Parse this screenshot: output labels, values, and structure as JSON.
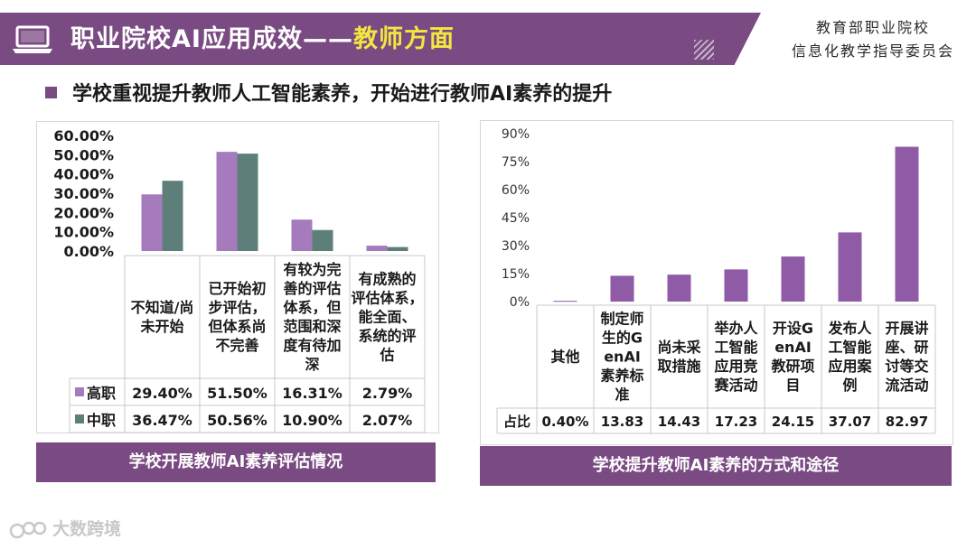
{
  "header": {
    "title_main": "职业院校AI应用成效——",
    "title_highlight": "教师方面",
    "org_line1": "教育部职业院校",
    "org_line2": "信息化教学指导委员会"
  },
  "subtitle": "学校重视提升教师人工智能素养，开始进行教师AI素养的提升",
  "colors": {
    "brand": "#7a4a83",
    "highlight": "#f2e640",
    "series_gaozhi": "#a57bbd",
    "series_zhongzhi": "#5e7f79",
    "bar_right": "#8f5aa6"
  },
  "chart_data": [
    {
      "type": "bar",
      "title": "学校开展教师AI素养评估情况",
      "categories": [
        [
          "不知道/尚",
          "未开始"
        ],
        [
          "已开始初",
          "步评估，",
          "但体系尚",
          "不完善"
        ],
        [
          "有较为完",
          "善的评估",
          "体系，但",
          "范围和深",
          "度有待加",
          "深"
        ],
        [
          "有成熟的",
          "评估体系，",
          "能全面、",
          "系统的评",
          "估"
        ]
      ],
      "series": [
        {
          "name": "高职",
          "values": [
            29.4,
            51.5,
            16.31,
            2.79
          ],
          "labels": [
            "29.40%",
            "51.50%",
            "16.31%",
            "2.79%"
          ]
        },
        {
          "name": "中职",
          "values": [
            36.47,
            50.56,
            10.9,
            2.07
          ],
          "labels": [
            "36.47%",
            "50.56%",
            "10.90%",
            "2.07%"
          ]
        }
      ],
      "yticks": [
        "60.00%",
        "50.00%",
        "40.00%",
        "30.00%",
        "20.00%",
        "10.00%",
        "0.00%"
      ],
      "ylim": [
        0,
        60
      ],
      "legend": "data-table"
    },
    {
      "type": "bar",
      "title": "学校提升教师AI素养的方式和途径",
      "categories": [
        [
          "其他"
        ],
        [
          "制定师",
          "生的G",
          "enAI",
          "素养标",
          "准"
        ],
        [
          "尚未采",
          "取措施"
        ],
        [
          "举办人",
          "工智能",
          "应用竞",
          "赛活动"
        ],
        [
          "开设G",
          "enAI",
          "教研项",
          "目"
        ],
        [
          "发布人",
          "工智能",
          "应用案",
          "例"
        ],
        [
          "开展讲",
          "座、研",
          "讨等交",
          "流活动"
        ]
      ],
      "series": [
        {
          "name": "占比",
          "values": [
            0.4,
            13.83,
            14.43,
            17.23,
            24.15,
            37.07,
            82.97
          ],
          "labels": [
            "0.40%",
            "13.83",
            "14.43",
            "17.23",
            "24.15",
            "37.07",
            "82.97"
          ]
        }
      ],
      "yticks": [
        "90%",
        "75%",
        "60%",
        "45%",
        "30%",
        "15%",
        "0%"
      ],
      "ylim": [
        0,
        90
      ],
      "legend": "data-table"
    }
  ],
  "watermark": "大数跨境"
}
